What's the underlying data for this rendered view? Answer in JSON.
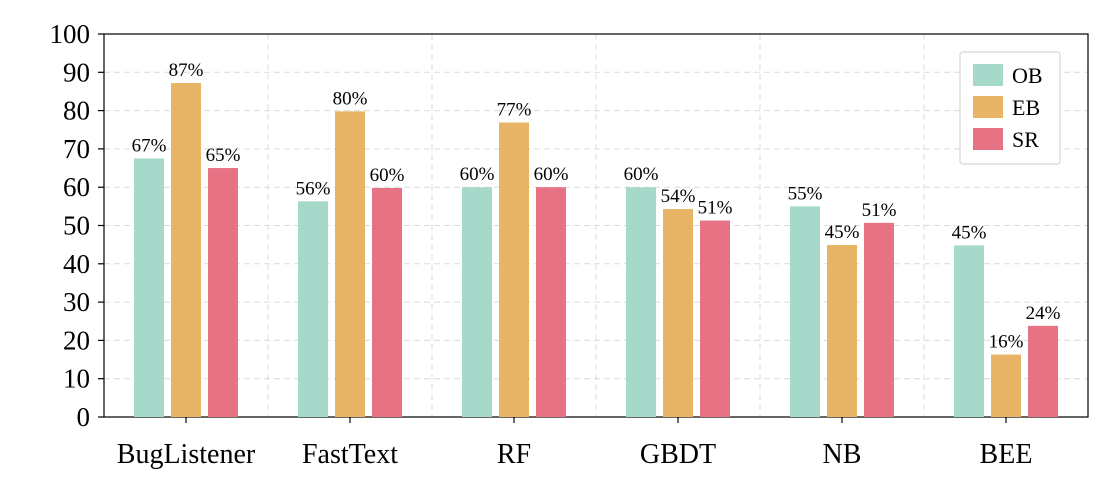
{
  "chart_data": {
    "type": "bar",
    "categories": [
      "BugListener",
      "FastText",
      "RF",
      "GBDT",
      "NB",
      "BEE"
    ],
    "series": [
      {
        "name": "OB",
        "color": "#a6d9ca",
        "values": [
          67.5,
          56.3,
          60.0,
          60.0,
          55.0,
          44.8
        ],
        "labels": [
          "67%",
          "56%",
          "60%",
          "60%",
          "55%",
          "45%"
        ]
      },
      {
        "name": "EB",
        "color": "#e8b566",
        "values": [
          87.2,
          79.8,
          76.9,
          54.3,
          44.9,
          16.3
        ],
        "labels": [
          "87%",
          "80%",
          "77%",
          "54%",
          "45%",
          "16%"
        ]
      },
      {
        "name": "SR",
        "color": "#e77283",
        "values": [
          65.0,
          59.8,
          60.0,
          51.3,
          50.7,
          23.8
        ],
        "labels": [
          "65%",
          "60%",
          "60%",
          "51%",
          "51%",
          "24%"
        ]
      }
    ],
    "ylim": [
      0,
      100
    ],
    "yticks": [
      "0",
      "10",
      "20",
      "30",
      "40",
      "50",
      "60",
      "70",
      "80",
      "90",
      "100"
    ],
    "grid": true,
    "legend_position": "top-right",
    "title": "",
    "xlabel": "",
    "ylabel": ""
  }
}
